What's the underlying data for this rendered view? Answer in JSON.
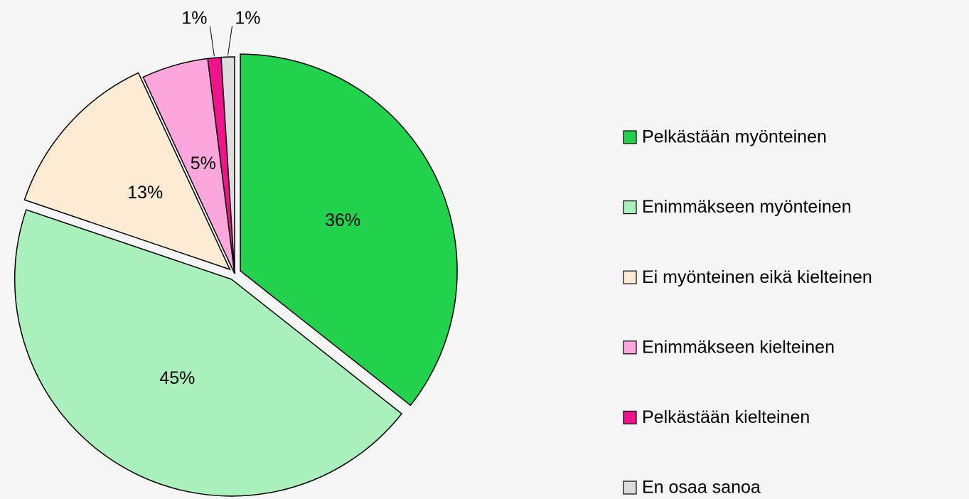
{
  "chart_data": {
    "type": "pie",
    "categories": [
      "Pelkästään myönteinen",
      "Enimmäkseen myönteinen",
      "Ei myönteinen eikä kielteinen",
      "Enimmäkseen kielteinen",
      "Pelkästään kielteinen",
      "En osaa sanoa"
    ],
    "values": [
      36,
      45,
      13,
      5,
      1,
      1
    ],
    "value_labels": [
      "36%",
      "45%",
      "13%",
      "5%",
      "1%",
      "1%"
    ],
    "colors": [
      "#22d24c",
      "#aaf0bc",
      "#fdebd3",
      "#fba6dc",
      "#f0148c",
      "#dcdcdc"
    ],
    "legend": "right"
  }
}
